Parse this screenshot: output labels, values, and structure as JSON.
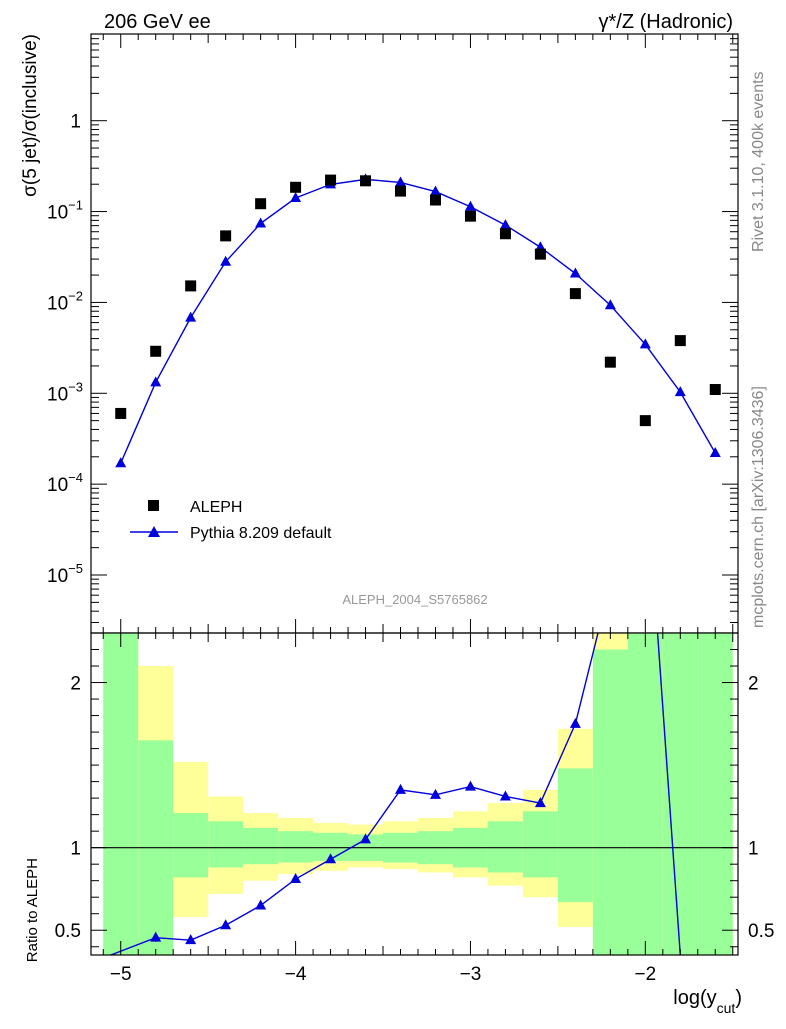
{
  "header": {
    "left": "206 GeV ee",
    "right": "γ*/Z (Hadronic)"
  },
  "side_labels": {
    "rivet": "Rivet 3.1.10,  400k events",
    "mcplots": "mcplots.cern.ch [arXiv:1306.3436]"
  },
  "analysis_id": "ALEPH_2004_S5765862",
  "colors": {
    "data": "#000000",
    "mc": "#0000dd",
    "band_inner": "#99ff99",
    "band_outer": "#ffff99"
  },
  "chart_data": [
    {
      "type": "scatter",
      "panel": "main",
      "ylabel": "σ(5 jet)/σ(inclusive)",
      "y_scale": "log",
      "ylim": [
        2.3e-06,
        9.0
      ],
      "xlim": [
        -5.17,
        -1.47
      ],
      "x_ticks": [
        -5,
        -4,
        -3,
        -2
      ],
      "y_tick_labels": [
        "1",
        "10^-1",
        "10^-2",
        "10^-3",
        "10^-4",
        "10^-5"
      ],
      "legend_position": "lower-left",
      "series": [
        {
          "name": "ALEPH",
          "marker": "square",
          "x": [
            -5.0,
            -4.8,
            -4.6,
            -4.4,
            -4.2,
            -4.0,
            -3.8,
            -3.6,
            -3.4,
            -3.2,
            -3.0,
            -2.8,
            -2.6,
            -2.4,
            -2.2,
            -2.0,
            -1.8,
            -1.6
          ],
          "y": [
            0.0006,
            0.0029,
            0.0152,
            0.054,
            0.122,
            0.185,
            0.222,
            0.218,
            0.168,
            0.134,
            0.089,
            0.057,
            0.034,
            0.0125,
            0.0022,
            0.0005,
            0.0038,
            0.0011
          ]
        },
        {
          "name": "Pythia 8.209 default",
          "marker": "triangle",
          "x": [
            -5.0,
            -4.8,
            -4.6,
            -4.4,
            -4.2,
            -4.0,
            -3.8,
            -3.6,
            -3.4,
            -3.2,
            -3.0,
            -2.8,
            -2.6,
            -2.4,
            -2.2,
            -2.0,
            -1.8,
            -1.6
          ],
          "y": [
            0.00017,
            0.00132,
            0.0068,
            0.028,
            0.074,
            0.141,
            0.199,
            0.226,
            0.209,
            0.166,
            0.113,
            0.071,
            0.0405,
            0.0208,
            0.0093,
            0.00345,
            0.00103,
            0.00022
          ]
        }
      ]
    },
    {
      "type": "line",
      "panel": "ratio",
      "ylabel": "Ratio to ALEPH",
      "xlabel": "log(y_cut)",
      "ylim": [
        0.35,
        2.3
      ],
      "y_ticks": [
        0.5,
        1,
        2
      ],
      "x_ticks": [
        -5,
        -4,
        -3,
        -2
      ],
      "reference_line": 1,
      "bin_edges": [
        -5.1,
        -4.9,
        -4.7,
        -4.5,
        -4.3,
        -4.1,
        -3.9,
        -3.7,
        -3.5,
        -3.3,
        -3.1,
        -2.9,
        -2.7,
        -2.5,
        -2.3,
        -2.1,
        -1.9,
        -1.7,
        -1.5
      ],
      "band_inner_low": [
        0.35,
        0.35,
        0.82,
        0.88,
        0.9,
        0.91,
        0.92,
        0.92,
        0.91,
        0.9,
        0.88,
        0.85,
        0.82,
        0.67,
        0.35,
        0.35,
        0.35,
        0.35
      ],
      "band_inner_high": [
        2.3,
        1.65,
        1.21,
        1.16,
        1.12,
        1.1,
        1.09,
        1.08,
        1.09,
        1.1,
        1.12,
        1.16,
        1.22,
        1.48,
        2.2,
        2.3,
        2.3,
        2.3
      ],
      "band_outer_low": [
        0.35,
        0.38,
        0.58,
        0.72,
        0.8,
        0.84,
        0.86,
        0.88,
        0.87,
        0.85,
        0.82,
        0.77,
        0.7,
        0.52,
        0.35,
        0.35,
        0.35,
        0.35
      ],
      "band_outer_high": [
        2.3,
        2.1,
        1.52,
        1.31,
        1.21,
        1.18,
        1.15,
        1.14,
        1.16,
        1.18,
        1.22,
        1.27,
        1.35,
        1.72,
        2.3,
        2.3,
        2.3,
        2.3
      ],
      "series": [
        {
          "name": "Pythia 8.209 default",
          "x": [
            -5.3,
            -4.8,
            -4.6,
            -4.4,
            -4.2,
            -4.0,
            -3.8,
            -3.6,
            -3.4,
            -3.2,
            -3.0,
            -2.8,
            -2.6,
            -2.4,
            -2.2,
            -1.95,
            -1.8
          ],
          "y": [
            0.25,
            0.455,
            0.44,
            0.53,
            0.65,
            0.81,
            0.93,
            1.05,
            1.35,
            1.32,
            1.37,
            1.31,
            1.27,
            1.75,
            2.3,
            2.3,
            0.35
          ],
          "yerr_bins": [
            {
              "x": -4.8,
              "lo": 0.43,
              "hi": 0.48
            }
          ]
        }
      ]
    }
  ]
}
